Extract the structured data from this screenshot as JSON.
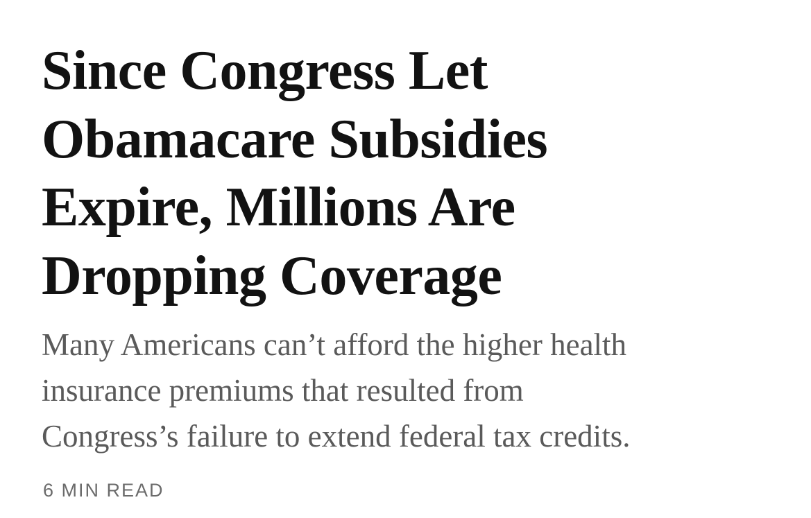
{
  "headline": {
    "lines": [
      "Since Congress Let",
      "Obamacare Subsidies",
      "Expire, Millions Are",
      "Dropping Coverage"
    ]
  },
  "summary": {
    "lines": [
      "Many Americans can’t afford the higher health",
      "insurance premiums that resulted from",
      "Congress’s failure to extend federal tax credits."
    ]
  },
  "read_time": "6 MIN READ"
}
